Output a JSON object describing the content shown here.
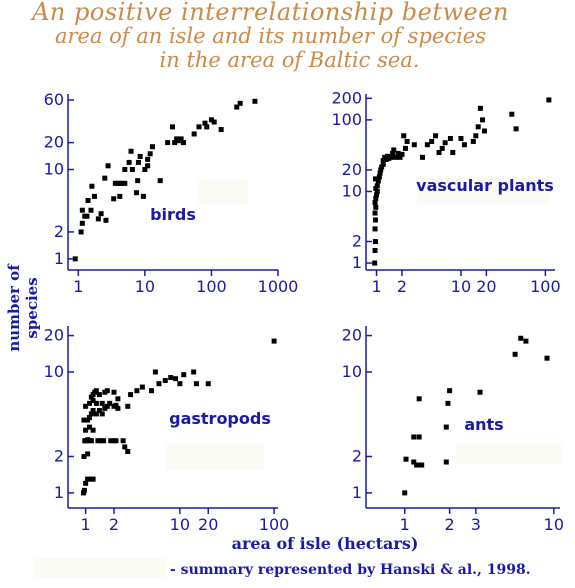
{
  "title": {
    "line1": "An positive interrelationship between",
    "line2": "area of an isle and its number of species",
    "line3": "in the area of Baltic sea."
  },
  "y_label": "number of species",
  "x_label": "area of isle (hectars)",
  "credit": "- summary represented by Hanski & al., 1998.",
  "colors": {
    "title": "#c98a4b",
    "text": "#1a1aa6",
    "axis": "#1a1aa6",
    "points": "#000000"
  },
  "chart_data": [
    {
      "type": "scatter",
      "label": "birds",
      "xscale": "log",
      "yscale": "log",
      "xlim": [
        0.7,
        1000
      ],
      "ylim": [
        0.75,
        70
      ],
      "xticks": [
        1,
        10,
        100,
        1000
      ],
      "yticks": [
        1,
        2,
        10,
        20,
        60
      ],
      "points": [
        [
          0.9,
          1
        ],
        [
          1.1,
          2
        ],
        [
          1.15,
          2.5
        ],
        [
          1.15,
          3.5
        ],
        [
          1.25,
          3
        ],
        [
          1.35,
          3
        ],
        [
          1.4,
          4.5
        ],
        [
          1.55,
          3.5
        ],
        [
          1.6,
          6.5
        ],
        [
          1.75,
          5
        ],
        [
          2.0,
          2.8
        ],
        [
          2.2,
          3.2
        ],
        [
          2.5,
          8
        ],
        [
          2.6,
          2.7
        ],
        [
          2.8,
          11
        ],
        [
          3.4,
          4.7
        ],
        [
          3.6,
          7
        ],
        [
          3.9,
          7
        ],
        [
          4.2,
          5
        ],
        [
          4.2,
          7
        ],
        [
          4.5,
          7
        ],
        [
          5.0,
          7
        ],
        [
          5.0,
          10
        ],
        [
          5.8,
          12
        ],
        [
          6.2,
          16
        ],
        [
          6.5,
          10
        ],
        [
          7.5,
          5.5
        ],
        [
          7.8,
          7.5
        ],
        [
          8.0,
          12
        ],
        [
          8.5,
          14
        ],
        [
          9.5,
          5
        ],
        [
          10,
          10
        ],
        [
          11,
          11
        ],
        [
          11,
          13
        ],
        [
          12,
          15
        ],
        [
          13,
          18
        ],
        [
          17,
          7.5
        ],
        [
          22,
          20
        ],
        [
          26,
          30
        ],
        [
          28,
          20
        ],
        [
          30,
          22
        ],
        [
          32,
          21
        ],
        [
          35,
          22
        ],
        [
          38,
          20
        ],
        [
          55,
          25
        ],
        [
          65,
          30
        ],
        [
          80,
          33
        ],
        [
          85,
          30
        ],
        [
          100,
          36
        ],
        [
          110,
          34
        ],
        [
          140,
          28
        ],
        [
          240,
          50
        ],
        [
          270,
          55
        ],
        [
          450,
          58
        ]
      ]
    },
    {
      "type": "scatter",
      "label": "vascular plants",
      "xscale": "log",
      "yscale": "log",
      "xlim": [
        0.75,
        130
      ],
      "ylim": [
        0.8,
        230
      ],
      "xticks": [
        1,
        2,
        10,
        20,
        100
      ],
      "yticks": [
        1,
        2,
        10,
        20,
        100,
        200
      ],
      "points": [
        [
          0.95,
          1
        ],
        [
          0.96,
          1.5
        ],
        [
          0.97,
          2
        ],
        [
          0.96,
          3
        ],
        [
          0.97,
          4
        ],
        [
          0.96,
          5
        ],
        [
          0.98,
          6
        ],
        [
          0.96,
          7
        ],
        [
          0.98,
          8
        ],
        [
          1.0,
          9
        ],
        [
          1.02,
          10
        ],
        [
          0.98,
          11
        ],
        [
          1.02,
          12
        ],
        [
          1.05,
          14
        ],
        [
          0.97,
          15
        ],
        [
          1.08,
          16
        ],
        [
          1.1,
          18
        ],
        [
          1.12,
          20
        ],
        [
          1.15,
          22
        ],
        [
          1.2,
          24
        ],
        [
          1.2,
          27
        ],
        [
          1.25,
          30
        ],
        [
          1.3,
          28
        ],
        [
          1.35,
          31
        ],
        [
          1.4,
          29
        ],
        [
          1.5,
          30
        ],
        [
          1.55,
          34
        ],
        [
          1.6,
          38
        ],
        [
          1.7,
          30
        ],
        [
          1.8,
          34
        ],
        [
          1.9,
          30
        ],
        [
          2.0,
          33
        ],
        [
          2.2,
          40
        ],
        [
          2.1,
          60
        ],
        [
          2.3,
          50
        ],
        [
          2.8,
          45
        ],
        [
          3.5,
          30
        ],
        [
          4.0,
          45
        ],
        [
          4.5,
          50
        ],
        [
          5.0,
          60
        ],
        [
          5.5,
          35
        ],
        [
          6.0,
          40
        ],
        [
          6.5,
          48
        ],
        [
          7.5,
          55
        ],
        [
          8.0,
          35
        ],
        [
          10,
          55
        ],
        [
          11,
          45
        ],
        [
          14,
          50
        ],
        [
          15,
          60
        ],
        [
          16,
          80
        ],
        [
          17,
          145
        ],
        [
          18,
          100
        ],
        [
          19,
          70
        ],
        [
          40,
          120
        ],
        [
          45,
          75
        ],
        [
          110,
          190
        ]
      ]
    },
    {
      "type": "scatter",
      "label": "gastropods",
      "xscale": "log",
      "yscale": "log",
      "xlim": [
        0.65,
        110
      ],
      "ylim": [
        0.75,
        24
      ],
      "xticks": [
        1,
        2,
        10,
        20,
        100
      ],
      "yticks": [
        1,
        2,
        10,
        20
      ],
      "points": [
        [
          0.95,
          1
        ],
        [
          0.97,
          1.05
        ],
        [
          1.0,
          1.2
        ],
        [
          1.05,
          1.3
        ],
        [
          1.15,
          1.3
        ],
        [
          1.2,
          1.3
        ],
        [
          0.96,
          2
        ],
        [
          1.05,
          2.1
        ],
        [
          0.98,
          2.7
        ],
        [
          1.0,
          2.7
        ],
        [
          1.05,
          2.75
        ],
        [
          1.1,
          2.7
        ],
        [
          1.15,
          2.7
        ],
        [
          1.35,
          2.7
        ],
        [
          1.45,
          2.7
        ],
        [
          1.55,
          2.7
        ],
        [
          1.85,
          2.7
        ],
        [
          2.0,
          2.7
        ],
        [
          2.1,
          2.7
        ],
        [
          2.5,
          2.7
        ],
        [
          2.6,
          2.4
        ],
        [
          2.8,
          2.2
        ],
        [
          1.0,
          3.3
        ],
        [
          1.1,
          3.5
        ],
        [
          1.2,
          3.3
        ],
        [
          0.96,
          4
        ],
        [
          1.05,
          4
        ],
        [
          1.1,
          4.2
        ],
        [
          1.15,
          4.5
        ],
        [
          1.2,
          4.8
        ],
        [
          1.3,
          4.5
        ],
        [
          1.5,
          4.5
        ],
        [
          1.4,
          4.8
        ],
        [
          1.6,
          5.0
        ],
        [
          1.0,
          5.2
        ],
        [
          1.1,
          5.5
        ],
        [
          1.2,
          5.8
        ],
        [
          1.3,
          5.5
        ],
        [
          1.5,
          5.5
        ],
        [
          1.7,
          5.2
        ],
        [
          1.8,
          5.5
        ],
        [
          2.0,
          5.2
        ],
        [
          2.1,
          5.3
        ],
        [
          2.2,
          6.0
        ],
        [
          1.15,
          6.2
        ],
        [
          1.2,
          6.5
        ],
        [
          1.25,
          6.8
        ],
        [
          1.3,
          7.0
        ],
        [
          1.4,
          6.5
        ],
        [
          1.6,
          6.8
        ],
        [
          1.7,
          7.0
        ],
        [
          2.0,
          6.8
        ],
        [
          2.2,
          5.0
        ],
        [
          2.8,
          5.2
        ],
        [
          3.0,
          6.5
        ],
        [
          3.5,
          7.0
        ],
        [
          4.0,
          7.5
        ],
        [
          5.0,
          7.0
        ],
        [
          5.5,
          10
        ],
        [
          6.0,
          8.0
        ],
        [
          7.0,
          8.5
        ],
        [
          8.0,
          9.0
        ],
        [
          9.0,
          8.8
        ],
        [
          10,
          8.0
        ],
        [
          11,
          9.5
        ],
        [
          14,
          10
        ],
        [
          15,
          8.0
        ],
        [
          20,
          8.0
        ],
        [
          100,
          18
        ]
      ]
    },
    {
      "type": "scatter",
      "label": "ants",
      "xscale": "log",
      "yscale": "log",
      "xlim": [
        0.55,
        11
      ],
      "ylim": [
        0.75,
        24
      ],
      "xticks": [
        1,
        2,
        3,
        10
      ],
      "yticks": [
        1,
        2,
        10,
        20
      ],
      "points": [
        [
          1.0,
          1
        ],
        [
          1.02,
          1.9
        ],
        [
          1.15,
          1.8
        ],
        [
          1.2,
          1.7
        ],
        [
          1.25,
          1.7
        ],
        [
          1.3,
          1.7
        ],
        [
          1.15,
          2.9
        ],
        [
          1.25,
          2.9
        ],
        [
          1.25,
          6
        ],
        [
          1.9,
          1.8
        ],
        [
          1.9,
          3.5
        ],
        [
          1.95,
          5.5
        ],
        [
          2.0,
          7.0
        ],
        [
          3.2,
          6.8
        ],
        [
          5.5,
          14
        ],
        [
          6.0,
          19
        ],
        [
          6.5,
          18
        ],
        [
          9.0,
          13
        ]
      ]
    }
  ]
}
